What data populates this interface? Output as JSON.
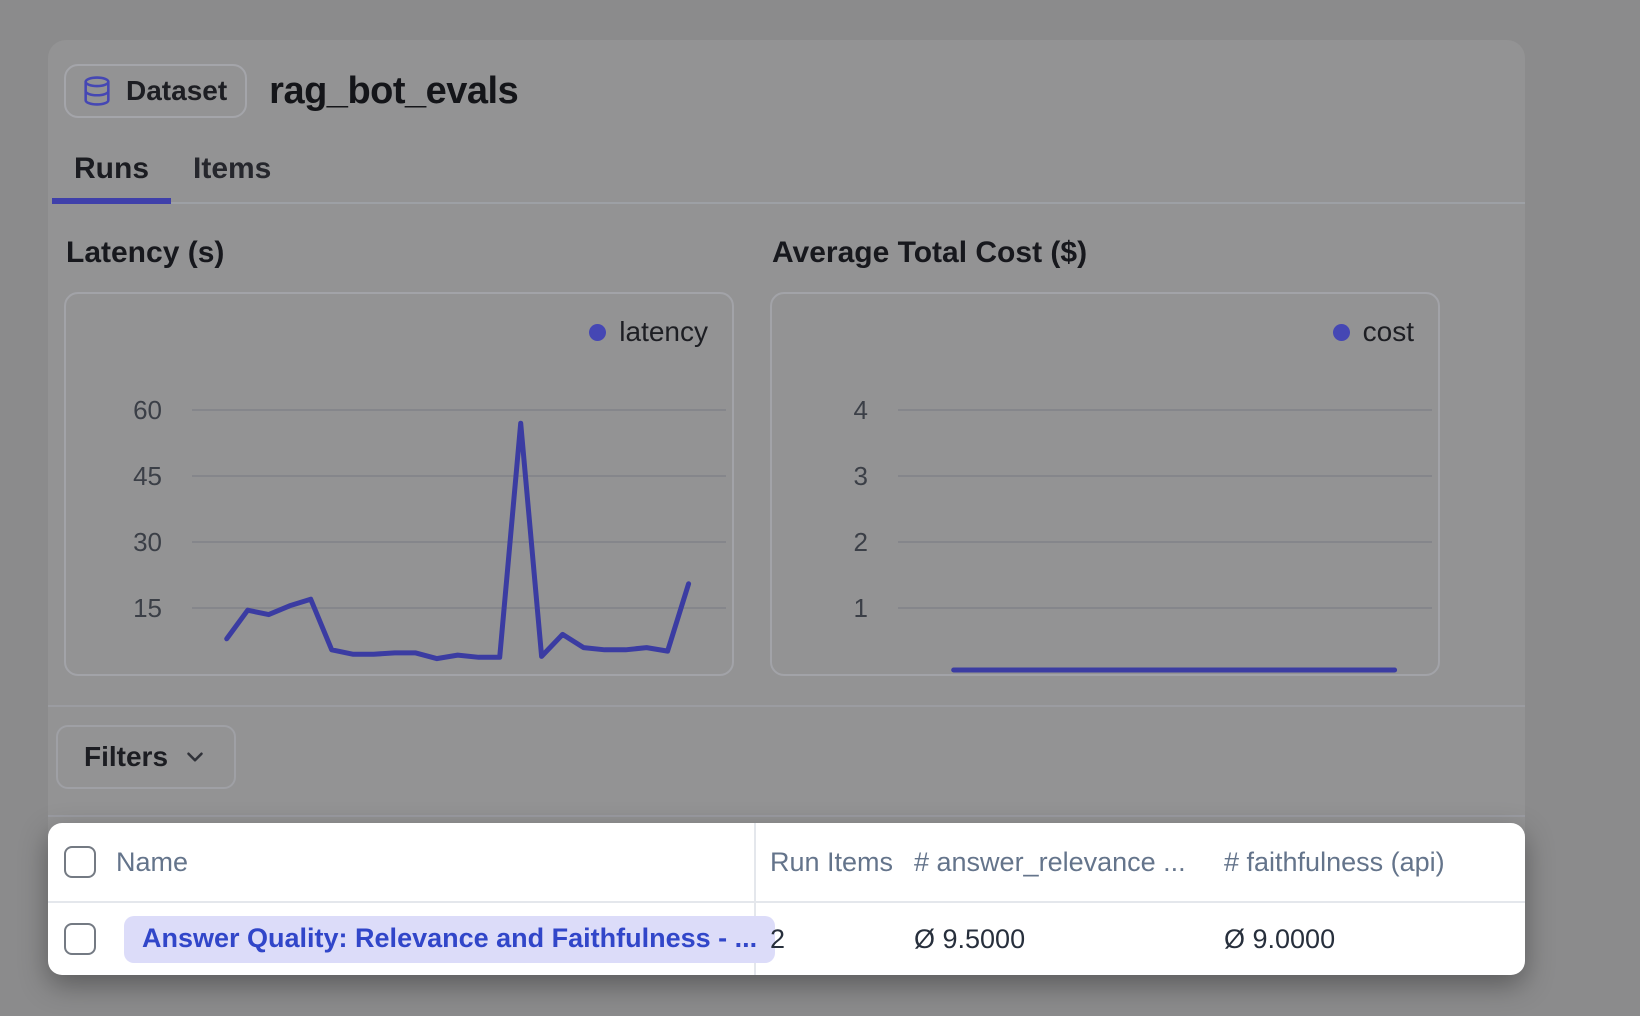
{
  "header": {
    "badge_label": "Dataset",
    "title": "rag_bot_evals"
  },
  "tabs": [
    {
      "label": "Runs",
      "active": true
    },
    {
      "label": "Items",
      "active": false
    }
  ],
  "chart_data": [
    {
      "type": "line",
      "title": "Latency (s)",
      "legend": "latency",
      "color": "#3b3ca2",
      "y_ticks": [
        60,
        45,
        30,
        15
      ],
      "ylim": [
        0,
        70
      ],
      "grid": true,
      "legend_position": "top-right",
      "xlabel": "",
      "ylabel": "seconds",
      "values": [
        8,
        14.5,
        13.5,
        15.5,
        17,
        5.5,
        4.5,
        4.5,
        4.8,
        4.8,
        3.5,
        4.3,
        3.8,
        3.8,
        57,
        4,
        9,
        6,
        5.5,
        5.5,
        6,
        5.2,
        20.5
      ]
    },
    {
      "type": "line",
      "title": "Average Total Cost ($)",
      "legend": "cost",
      "color": "#3b3ca2",
      "y_ticks": [
        4,
        3,
        2,
        1
      ],
      "ylim": [
        0,
        4.7
      ],
      "grid": true,
      "legend_position": "top-right",
      "xlabel": "",
      "ylabel": "dollars",
      "values": [
        null,
        0.02,
        0.02,
        0.02,
        0.02,
        0.02,
        0.02,
        0.02,
        0.02,
        0.02,
        0.02,
        0.02,
        0.02,
        0.02,
        0.02,
        0.02,
        0.02,
        0.02,
        0.02,
        0.02,
        0.02,
        0.02,
        0.02
      ]
    }
  ],
  "filters": {
    "button_label": "Filters"
  },
  "table": {
    "columns": [
      "Name",
      "Run Items",
      "# answer_relevance ...",
      "# faithfulness (api)"
    ],
    "rows": [
      {
        "name": "Answer Quality: Relevance and Faithfulness - ...",
        "run_items": "2",
        "answer_relevance": "Ø 9.5000",
        "faithfulness": "Ø 9.0000"
      }
    ]
  },
  "colors": {
    "accent_indigo": "#3b3ca2",
    "legend_dot": "#4547b4",
    "active_tab_underline": "#3f40aa",
    "pill_bg": "#dcdcf9",
    "pill_text": "#3146c9",
    "overlay_gray_bg": "#8b8b8c",
    "card_gray_bg": "#939394",
    "spotlight_bg": "#ffffff",
    "table_header_text": "#64748b"
  }
}
